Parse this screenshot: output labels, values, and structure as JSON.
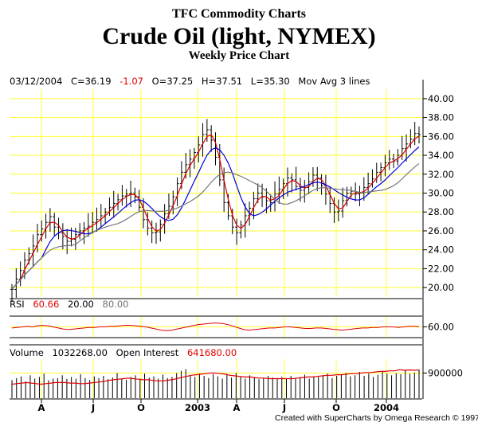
{
  "header": {
    "source": "TFC Commodity Charts",
    "title": "Crude Oil (light, NYMEX)",
    "subtitle": "Weekly Price Chart"
  },
  "quote": {
    "date": "03/12/2004",
    "close": "C=36.19",
    "change": "-1.07",
    "open": "O=37.25",
    "high": "H=37.51",
    "low": "L=35.30",
    "indicator": "Mov Avg 3 lines"
  },
  "rsi": {
    "label": "RSI",
    "value": "60.66",
    "upper": "20.00",
    "lower": "80.00"
  },
  "volume": {
    "label": "Volume",
    "value": "1032268.00",
    "oi_label": "Open Interest",
    "oi_value": "641680.00"
  },
  "credit": "Created with SuperCharts by Omega Research © 1997",
  "colors": {
    "grid": "#ffff33",
    "price": "#000000",
    "ma_fast": "#e00000",
    "ma_mid": "#0000dd",
    "ma_slow": "#777777",
    "oi": "#e00000"
  },
  "chart_data": {
    "type": "ohlc",
    "x_tick_labels": [
      "A",
      "J",
      "O",
      "2003",
      "A",
      "J",
      "O",
      "2004"
    ],
    "price_axis": {
      "ylim": [
        19,
        41
      ],
      "ticks": [
        "20.00",
        "22.00",
        "24.00",
        "26.00",
        "28.00",
        "30.00",
        "32.00",
        "34.00",
        "36.00",
        "38.00",
        "40.00"
      ]
    },
    "rsi_axis": {
      "ylim": [
        40,
        80
      ],
      "ticks": [
        "60.00"
      ]
    },
    "volume_axis": {
      "ylim": [
        0,
        1400000
      ],
      "ticks": [
        "900000"
      ]
    },
    "grid": true,
    "weekly_close": [
      19.8,
      20.9,
      21.8,
      22.9,
      23.6,
      24.4,
      25.6,
      26.2,
      26.9,
      27.5,
      26.4,
      25.8,
      25.4,
      24.9,
      25.1,
      25.6,
      26.0,
      26.3,
      26.5,
      26.9,
      27.2,
      27.6,
      28.0,
      28.5,
      28.9,
      29.3,
      29.7,
      29.9,
      30.0,
      29.6,
      28.5,
      27.2,
      26.3,
      25.8,
      25.9,
      26.7,
      27.8,
      28.6,
      29.6,
      31.0,
      32.2,
      33.0,
      33.6,
      34.3,
      35.1,
      36.2,
      36.7,
      35.6,
      33.8,
      31.4,
      29.0,
      27.6,
      26.4,
      25.8,
      26.6,
      27.6,
      28.4,
      29.4,
      30.0,
      29.6,
      29.2,
      29.0,
      29.9,
      30.4,
      31.0,
      31.6,
      31.4,
      30.7,
      30.3,
      30.6,
      31.2,
      31.9,
      31.6,
      30.8,
      29.9,
      28.9,
      28.0,
      28.1,
      29.2,
      30.0,
      30.2,
      29.9,
      30.0,
      30.6,
      31.0,
      31.5,
      32.2,
      32.7,
      33.2,
      33.6,
      33.4,
      34.0,
      34.7,
      35.2,
      35.7,
      36.3,
      36.19
    ],
    "rsi_values": [
      58,
      59,
      60,
      61,
      60,
      62,
      63,
      62,
      60,
      58,
      56,
      55,
      56,
      57,
      58,
      59,
      59,
      60,
      60,
      61,
      61,
      62,
      63,
      63,
      62,
      61,
      60,
      58,
      56,
      54,
      53,
      54,
      56,
      58,
      60,
      62,
      64,
      65,
      66,
      67,
      67,
      66,
      64,
      61,
      58,
      55,
      54,
      55,
      56,
      57,
      58,
      58,
      59,
      60,
      60,
      59,
      58,
      57,
      57,
      58,
      58,
      57,
      56,
      55,
      54,
      55,
      56,
      57,
      58,
      58,
      59,
      59,
      60,
      60,
      60,
      59,
      60,
      61,
      61,
      60.66
    ],
    "volume_bars": [
      650,
      720,
      780,
      600,
      820,
      700,
      760,
      880,
      640,
      700,
      720,
      820,
      690,
      760,
      700,
      860,
      720,
      650,
      780,
      720,
      800,
      680,
      740,
      900,
      700,
      660,
      760,
      820,
      700,
      880,
      740,
      780,
      700,
      840,
      720,
      760,
      900,
      980,
      1040,
      820,
      760,
      880,
      800,
      720,
      860,
      780,
      700,
      860,
      740,
      900,
      780,
      700,
      820,
      760,
      680,
      720,
      800,
      740,
      700,
      760,
      700,
      800,
      720,
      760,
      840,
      700,
      780,
      760,
      820,
      880,
      720,
      800,
      860,
      900,
      780,
      820,
      940,
      800,
      880,
      760,
      840,
      960,
      880,
      820,
      900,
      860,
      1000,
      880,
      920,
      1030
    ],
    "open_interest": [
      500,
      520,
      540,
      560,
      540,
      520,
      500,
      520,
      540,
      560,
      560,
      560,
      540,
      540,
      520,
      520,
      540,
      560,
      580,
      600,
      640,
      660,
      680,
      700,
      720,
      700,
      680,
      660,
      660,
      640,
      620,
      620,
      640,
      660,
      700,
      740,
      780,
      820,
      840,
      860,
      880,
      900,
      900,
      880,
      860,
      820,
      800,
      780,
      760,
      760,
      740,
      720,
      720,
      700,
      700,
      700,
      700,
      700,
      700,
      720,
      740,
      760,
      760,
      780,
      800,
      820,
      820,
      840,
      840,
      860,
      880,
      880,
      900,
      920,
      920,
      940,
      960,
      960,
      980,
      980,
      1020,
      1000,
      1010,
      1000,
      1005
    ]
  }
}
